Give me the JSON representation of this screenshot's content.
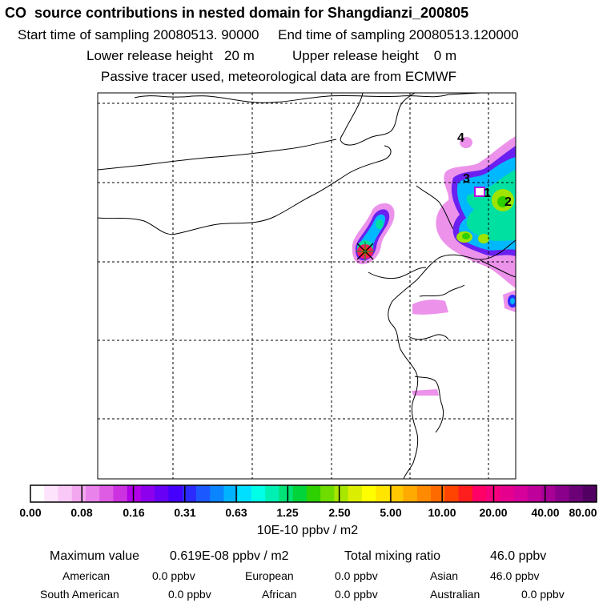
{
  "header": {
    "title": "CO  source contributions in nested domain for Shangdianzi_200805",
    "start_label": "Start time of sampling",
    "start_value": "20080513. 90000",
    "end_label": "End time of sampling",
    "end_value": "20080513.120000",
    "lower_label": "Lower release height",
    "lower_value": "20 m",
    "upper_label": "Upper release height",
    "upper_value": "0 m",
    "note": "Passive tracer used, meteorological data are from ECMWF"
  },
  "map": {
    "region_labels": [
      "4",
      "3",
      "1",
      "2"
    ],
    "receptor_marker": "sampling-site-star"
  },
  "colorbar": {
    "colors": [
      "#ffffff",
      "#fde3fb",
      "#f9c8f6",
      "#f2a7ef",
      "#e982ea",
      "#de5ce4",
      "#cc32e0",
      "#b100e6",
      "#8d00ee",
      "#6700f5",
      "#4400fc",
      "#2c2bff",
      "#1c58ff",
      "#0a84ff",
      "#00b3ff",
      "#00dfff",
      "#00ffe6",
      "#00f0b4",
      "#00e276",
      "#00d43a",
      "#2ed000",
      "#6fdc00",
      "#a8e600",
      "#dbed00",
      "#ffff00",
      "#ffe500",
      "#ffc800",
      "#ffaa00",
      "#ff8a00",
      "#ff6a00",
      "#ff4300",
      "#ff1e1e",
      "#ff0066",
      "#f4007e",
      "#e6008e",
      "#d6009a",
      "#c0009a",
      "#a60096",
      "#8a008a",
      "#6c0077",
      "#520061"
    ],
    "labels": [
      "0.00",
      "0.08",
      "0.16",
      "0.31",
      "0.63",
      "1.25",
      "2.50",
      "5.00",
      "10.00",
      "20.00",
      "40.00",
      "80.00"
    ],
    "units": "10E-10 ppbv / m2"
  },
  "stats": {
    "max_label": "Maximum value",
    "max_value": "0.619E-08 ppbv / m2",
    "total_label": "Total mixing ratio",
    "total_value": "46.0 ppbv",
    "regions": [
      {
        "name": "American",
        "value": "0.0 ppbv"
      },
      {
        "name": "European",
        "value": "0.0 ppbv"
      },
      {
        "name": "Asian",
        "value": "46.0 ppbv"
      },
      {
        "name": "South American",
        "value": "0.0 ppbv"
      },
      {
        "name": "African",
        "value": "0.0 ppbv"
      },
      {
        "name": "Australian",
        "value": "0.0 ppbv"
      }
    ]
  }
}
